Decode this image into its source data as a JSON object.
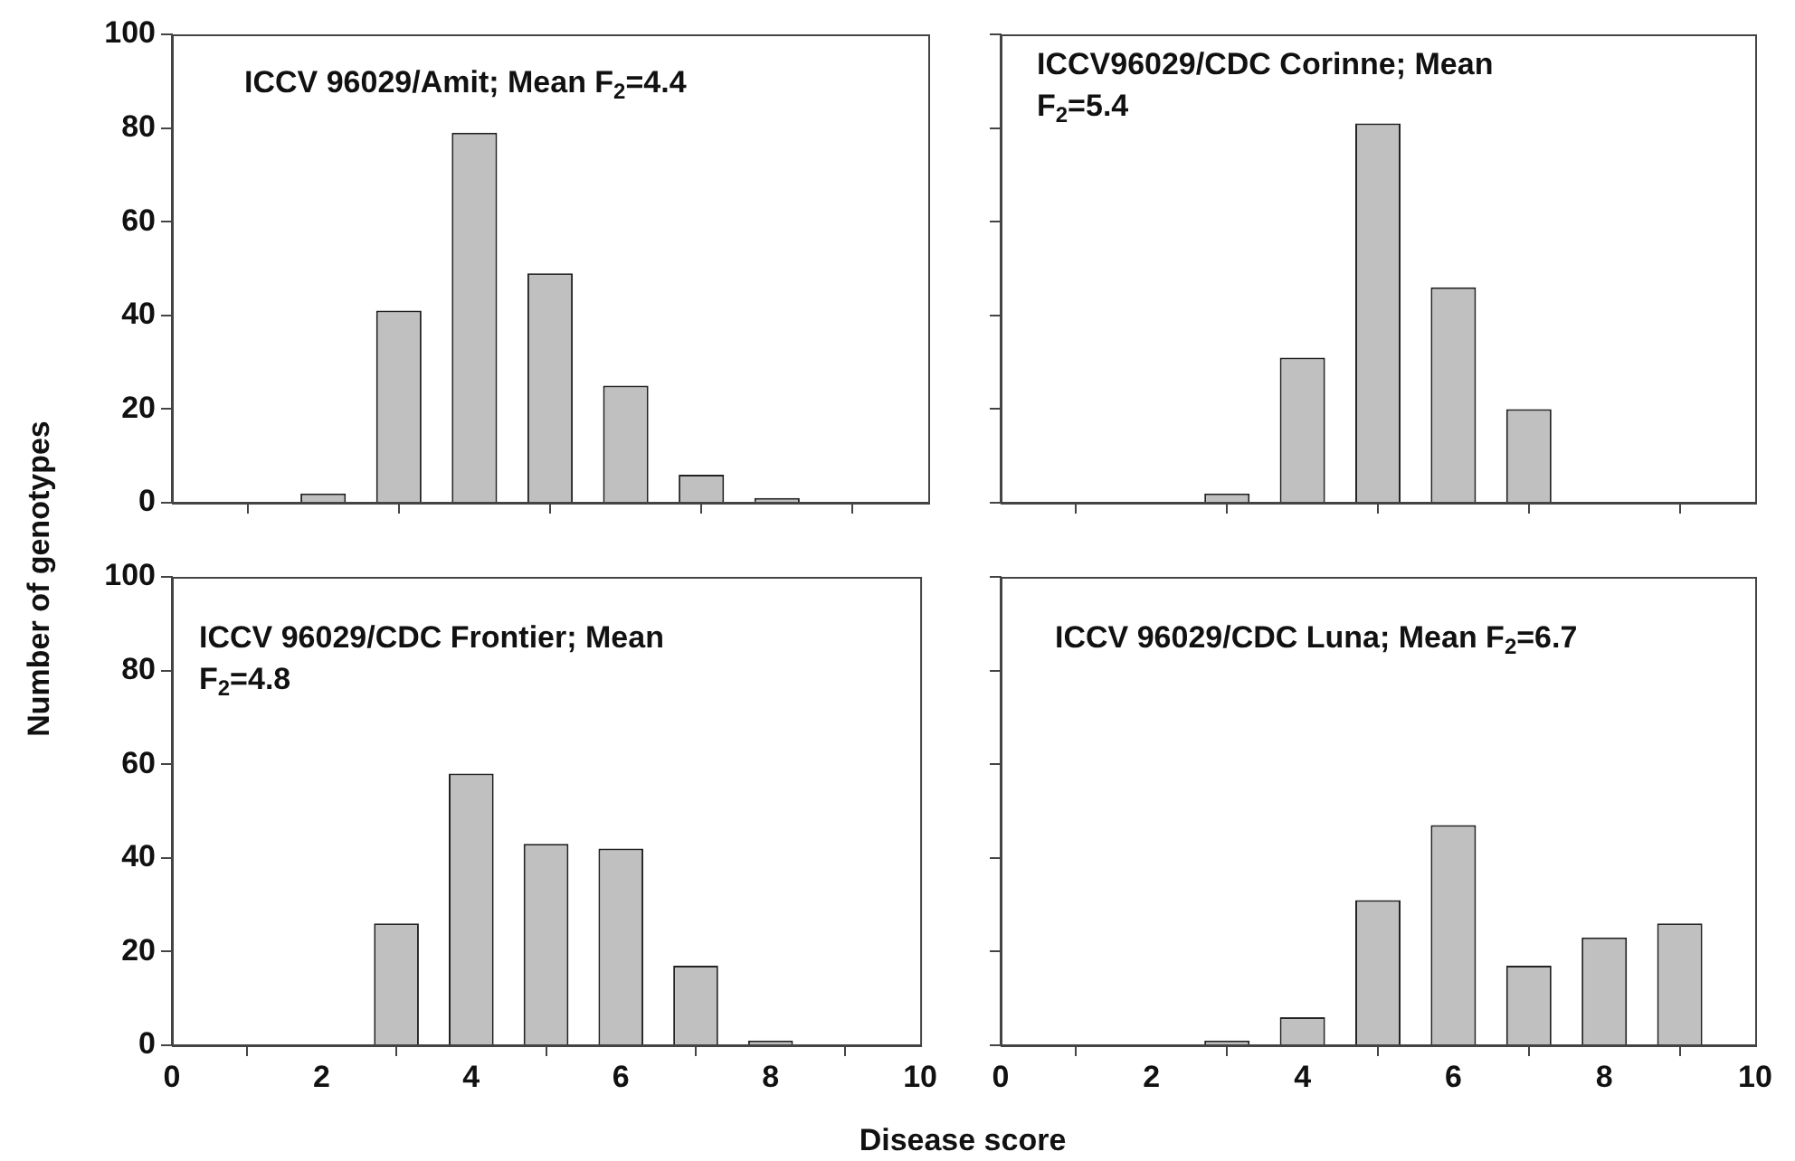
{
  "chart_data": [
    {
      "type": "bar",
      "annotations": [
        "ICCV 96029/Amit; Mean F$_{2}$=4.4"
      ],
      "ylabel": "Number of genotypes",
      "x": [
        2,
        3,
        4,
        5,
        6,
        7,
        8
      ],
      "values": [
        2,
        41,
        79,
        49,
        25,
        6,
        1
      ],
      "color": "#c0c0c0",
      "xlim": [
        0,
        10
      ],
      "xticks": [
        0,
        2,
        4,
        6,
        8,
        10
      ],
      "ylim": [
        0,
        100
      ],
      "yticks": [
        0,
        20,
        40,
        60,
        80,
        100
      ],
      "tick_labels": "y"
    },
    {
      "type": "bar",
      "annotations": [
        "ICCV96029/CDC Corinne; Mean\nF$_{2}$=5.4"
      ],
      "x": [
        3,
        4,
        5,
        6,
        7
      ],
      "values": [
        2,
        31,
        81,
        46,
        20
      ],
      "color": "#c0c0c0",
      "xlim": [
        0,
        10
      ],
      "xticks": [
        0,
        2,
        4,
        6,
        8,
        10
      ],
      "ylim": [
        0,
        100
      ],
      "yticks": [
        0,
        20,
        40,
        60,
        80,
        100
      ],
      "tick_labels": false
    },
    {
      "type": "bar",
      "annotations": [
        "ICCV 96029/CDC Frontier; Mean\nF$_{2}$=4.8"
      ],
      "xlabel": "Disease score",
      "x": [
        3,
        4,
        5,
        6,
        7,
        8
      ],
      "values": [
        26,
        58,
        43,
        42,
        17,
        1
      ],
      "color": "#c0c0c0",
      "xlim": [
        0,
        10
      ],
      "xticks": [
        0,
        2,
        4,
        6,
        8,
        10
      ],
      "ylim": [
        0,
        100
      ],
      "yticks": [
        0,
        20,
        40,
        60,
        80,
        100
      ]
    },
    {
      "type": "bar",
      "annotations": [
        "ICCV 96029/CDC Luna; Mean F$_{2}$=6.7"
      ],
      "x": [
        3,
        4,
        5,
        6,
        7,
        8,
        9
      ],
      "values": [
        1,
        6,
        31,
        47,
        17,
        23,
        26
      ],
      "color": "#c0c0c0",
      "xlim": [
        0,
        10
      ],
      "xticks": [
        0,
        2,
        4,
        6,
        8,
        10
      ],
      "ylim": [
        0,
        100
      ],
      "yticks": [
        0,
        20,
        40,
        60,
        80,
        100
      ],
      "tick_labels": "x"
    }
  ]
}
